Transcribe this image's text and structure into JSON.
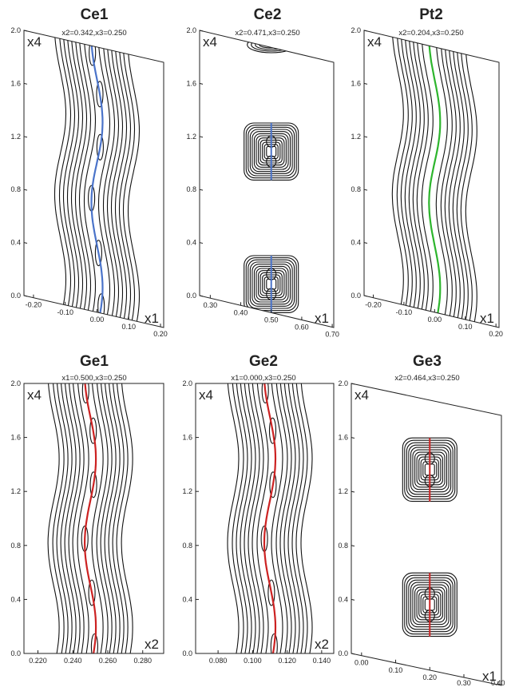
{
  "panels": [
    {
      "id": "ce1",
      "title": "Ce1",
      "subtitle": "x2=0.342,x3=0.250",
      "vertical_axis_label": "x4",
      "horizontal_axis_label": "x1",
      "y_ticks": [
        "0.0",
        "0.4",
        "0.8",
        "1.2",
        "1.6",
        "2.0"
      ],
      "x_ticks": [
        "-0.20",
        "-0.10",
        "0.00",
        "0.10",
        "0.20"
      ],
      "x_tick_values": [
        -0.2,
        -0.1,
        0.0,
        0.1,
        0.2
      ],
      "x_range": [
        -0.23,
        0.21
      ],
      "frame_skewed": true,
      "pattern": "wavy-band",
      "center_line_color": "#4a73c9",
      "center_value": 0.0
    },
    {
      "id": "ce2",
      "title": "Ce2",
      "subtitle": "x2=0.471,x3=0.250",
      "vertical_axis_label": "x4",
      "horizontal_axis_label": "x1",
      "y_ticks": [
        "0.0",
        "0.4",
        "0.8",
        "1.2",
        "1.6",
        "2.0"
      ],
      "x_ticks": [
        "0.30",
        "0.40",
        "0.50",
        "0.60",
        "0.70"
      ],
      "x_tick_values": [
        0.3,
        0.4,
        0.5,
        0.6,
        0.7
      ],
      "x_range": [
        0.265,
        0.705
      ],
      "frame_skewed": true,
      "pattern": "islands",
      "center_line_color": "#4a73c9",
      "center_value": 0.5,
      "islands": [
        {
          "x4_from": 0.0,
          "x4_to": 0.43
        },
        {
          "x4_from": 1.0,
          "x4_to": 1.43
        }
      ]
    },
    {
      "id": "pt2",
      "title": "Pt2",
      "subtitle": "x2=0.204,x3=0.250",
      "vertical_axis_label": "x4",
      "horizontal_axis_label": "x1",
      "y_ticks": [
        "0.0",
        "0.4",
        "0.8",
        "1.2",
        "1.6",
        "2.0"
      ],
      "x_ticks": [
        "-0.20",
        "-0.10",
        "0.00",
        "0.10",
        "0.20"
      ],
      "x_tick_values": [
        -0.2,
        -0.1,
        0.0,
        0.1,
        0.2
      ],
      "x_range": [
        -0.23,
        0.21
      ],
      "frame_skewed": true,
      "pattern": "wavy-band-plain",
      "center_line_color": "#2db52d",
      "center_value": 0.0
    },
    {
      "id": "ge1",
      "title": "Ge1",
      "subtitle": "x1=0.500,x3=0.250",
      "vertical_axis_label": "x4",
      "horizontal_axis_label": "x2",
      "y_ticks": [
        "0.0",
        "0.4",
        "0.8",
        "1.2",
        "1.6",
        "2.0"
      ],
      "x_ticks": [
        "0.220",
        "0.240",
        "0.260",
        "0.280"
      ],
      "x_tick_values": [
        0.22,
        0.24,
        0.26,
        0.28
      ],
      "x_range": [
        0.212,
        0.292
      ],
      "frame_skewed": false,
      "pattern": "wavy-band",
      "center_line_color": "#cc2222",
      "center_value": 0.25
    },
    {
      "id": "ge2",
      "title": "Ge2",
      "subtitle": "x1=0.000,x3=0.250",
      "vertical_axis_label": "x4",
      "horizontal_axis_label": "x2",
      "y_ticks": [
        "0.0",
        "0.4",
        "0.8",
        "1.2",
        "1.6",
        "2.0"
      ],
      "x_ticks": [
        "0.080",
        "0.100",
        "0.120",
        "0.140"
      ],
      "x_tick_values": [
        0.08,
        0.1,
        0.12,
        0.14
      ],
      "x_range": [
        0.067,
        0.147
      ],
      "frame_skewed": false,
      "pattern": "wavy-band",
      "center_line_color": "#cc2222",
      "center_value": 0.11
    },
    {
      "id": "ge3",
      "title": "Ge3",
      "subtitle": "x2=0.464,x3=0.250",
      "vertical_axis_label": "x4",
      "horizontal_axis_label": "x1",
      "y_ticks": [
        "0.0",
        "0.4",
        "0.8",
        "1.2",
        "1.6",
        "2.0"
      ],
      "x_ticks": [
        "0.00",
        "0.10",
        "0.20",
        "0.30",
        "0.40"
      ],
      "x_tick_values": [
        0.0,
        0.1,
        0.2,
        0.3,
        0.4
      ],
      "x_range": [
        -0.03,
        0.41
      ],
      "frame_skewed": true,
      "pattern": "islands",
      "center_line_color": "#cc2222",
      "center_value": 0.2,
      "islands": [
        {
          "x4_from": 0.25,
          "x4_to": 0.72
        },
        {
          "x4_from": 1.25,
          "x4_to": 1.72
        }
      ]
    }
  ]
}
